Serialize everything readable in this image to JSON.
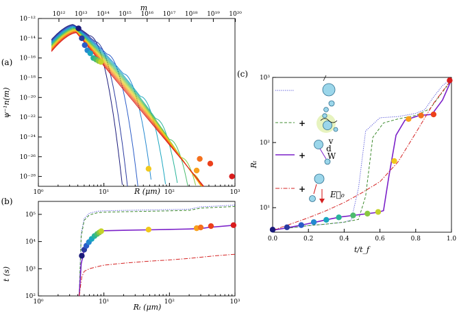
{
  "chart_data": [
    {
      "panel": "(a)",
      "type": "line",
      "title": "",
      "xlabel": "R (μm)",
      "ylabel": "ψ⁻¹n(m)",
      "top_xlabel": "m",
      "xscale": "log",
      "yscale": "log",
      "xlim": [
        1,
        1000
      ],
      "ylim": [
        1e-29,
        1e-12
      ],
      "x_ticks": [
        "10⁰",
        "10¹",
        "10²",
        "10³"
      ],
      "y_ticks": [
        "10⁻¹²",
        "10⁻¹⁴",
        "10⁻¹⁶",
        "10⁻¹⁸",
        "10⁻²⁰",
        "10⁻²²",
        "10⁻²⁴",
        "10⁻²⁶",
        "10⁻²⁸"
      ],
      "top_ticks": [
        "10¹²",
        "10¹³",
        "10¹⁴",
        "10¹⁵",
        "10¹⁶",
        "10¹⁷",
        "10¹⁸",
        "10¹⁹",
        "10²⁰"
      ],
      "series_colors": [
        "#1a1a7a",
        "#2a3aa0",
        "#2a5cc8",
        "#2388d0",
        "#1aa6c0",
        "#28b49a",
        "#4cbc6c",
        "#88c840",
        "#c4d22a",
        "#f0c81c",
        "#f8a01c",
        "#f4701c",
        "#ec401c",
        "#d81c1c"
      ],
      "markers": [
        {
          "x": 4.1,
          "y": 1e-13
        },
        {
          "x": 4.6,
          "y": 1e-14
        },
        {
          "x": 5.1,
          "y": 2e-15
        },
        {
          "x": 5.6,
          "y": 6e-16
        },
        {
          "x": 6.2,
          "y": 3e-16
        },
        {
          "x": 6.9,
          "y": 1e-16
        },
        {
          "x": 7.6,
          "y": 7e-17
        },
        {
          "x": 8.3,
          "y": 5e-17
        },
        {
          "x": 9.0,
          "y": 4e-17
        },
        {
          "x": 48,
          "y": 6e-28
        },
        {
          "x": 260,
          "y": 4e-28
        },
        {
          "x": 290,
          "y": 6e-27
        },
        {
          "x": 420,
          "y": 2e-27
        },
        {
          "x": 900,
          "y": 1e-28
        }
      ]
    },
    {
      "panel": "(b)",
      "type": "line",
      "title": "",
      "xlabel": "Rₜ (μm)",
      "ylabel": "t (s)",
      "xscale": "log",
      "yscale": "log",
      "xlim": [
        1,
        1000
      ],
      "ylim": [
        100,
        300000
      ],
      "x_ticks": [
        "10⁰",
        "10¹",
        "10²",
        "10³"
      ],
      "y_ticks": [
        "10²",
        "10³",
        "10⁴",
        "10⁵"
      ],
      "series": [
        {
          "style": "dotted",
          "color": "#5050d8",
          "x": [
            4.2,
            4.5,
            5,
            6,
            8,
            10,
            20,
            50,
            100,
            200,
            300,
            500,
            1000
          ],
          "y": [
            100,
            20000,
            70000,
            110000,
            130000,
            135000,
            140000,
            145000,
            150000,
            155000,
            190000,
            200000,
            220000
          ]
        },
        {
          "style": "dashed",
          "color": "#3c8a2c",
          "x": [
            4.2,
            4.5,
            5,
            6,
            8,
            10,
            20,
            50,
            100,
            200,
            300,
            500,
            1000
          ],
          "y": [
            100,
            15000,
            60000,
            95000,
            115000,
            120000,
            125000,
            130000,
            135000,
            140000,
            170000,
            180000,
            195000
          ]
        },
        {
          "style": "solid",
          "color": "#7a1fc8",
          "x": [
            4.2,
            4.5,
            5,
            6,
            7,
            8,
            9,
            10,
            20,
            50,
            100,
            200,
            300,
            400,
            1000
          ],
          "y": [
            100,
            1500,
            5000,
            11000,
            16000,
            20000,
            23000,
            25000,
            26000,
            27000,
            28000,
            29000,
            30000,
            33000,
            40000
          ]
        },
        {
          "style": "dashdot",
          "color": "#d42020",
          "x": [
            4.2,
            4.6,
            5,
            6,
            8,
            10,
            20,
            50,
            100,
            200,
            500,
            1000
          ],
          "y": [
            100,
            500,
            800,
            1000,
            1200,
            1350,
            1600,
            1900,
            2100,
            2400,
            3000,
            3400
          ]
        }
      ],
      "markers": [
        {
          "x": 4.6,
          "y": 3000
        },
        {
          "x": 5.0,
          "y": 5000
        },
        {
          "x": 5.4,
          "y": 7000
        },
        {
          "x": 5.9,
          "y": 9500
        },
        {
          "x": 6.5,
          "y": 12500
        },
        {
          "x": 7.2,
          "y": 16000
        },
        {
          "x": 7.9,
          "y": 19000
        },
        {
          "x": 8.5,
          "y": 21500
        },
        {
          "x": 9.1,
          "y": 24000
        },
        {
          "x": 48,
          "y": 27500
        },
        {
          "x": 260,
          "y": 31000
        },
        {
          "x": 300,
          "y": 33000
        },
        {
          "x": 430,
          "y": 37000
        },
        {
          "x": 950,
          "y": 40000
        }
      ]
    },
    {
      "panel": "(c)",
      "type": "line",
      "title": "",
      "xlabel": "t/t_f",
      "ylabel": "Rₜ",
      "xscale": "linear",
      "yscale": "log",
      "xlim": [
        0,
        1
      ],
      "ylim": [
        4.2,
        1000
      ],
      "x_ticks": [
        "0.0",
        "0.2",
        "0.4",
        "0.6",
        "0.8",
        "1.0"
      ],
      "y_ticks": [
        "10¹",
        "10²",
        "10³"
      ],
      "series": [
        {
          "style": "dotted",
          "color": "#5050d8",
          "x": [
            0,
            0.1,
            0.2,
            0.3,
            0.4,
            0.44,
            0.48,
            0.52,
            0.6,
            0.7,
            0.8,
            0.85,
            0.9,
            0.95,
            1.0
          ],
          "y": [
            4.6,
            4.9,
            5.3,
            5.6,
            6,
            6.5,
            20,
            150,
            240,
            250,
            280,
            320,
            500,
            750,
            950
          ]
        },
        {
          "style": "dashed",
          "color": "#3c8a2c",
          "x": [
            0,
            0.1,
            0.2,
            0.3,
            0.4,
            0.48,
            0.52,
            0.56,
            0.62,
            0.7,
            0.8,
            0.88,
            0.95,
            1.0
          ],
          "y": [
            4.6,
            4.9,
            5.3,
            5.6,
            6,
            6.6,
            15,
            120,
            200,
            230,
            260,
            330,
            600,
            900
          ]
        },
        {
          "style": "solid",
          "color": "#7a1fc8",
          "x": [
            0,
            0.08,
            0.16,
            0.24,
            0.31,
            0.38,
            0.45,
            0.53,
            0.59,
            0.62,
            0.65,
            0.69,
            0.74,
            0.82,
            0.89,
            0.95,
            1.0
          ],
          "y": [
            4.5,
            4.9,
            5.4,
            6,
            6.6,
            7.2,
            7.6,
            8.1,
            8.5,
            9,
            30,
            130,
            220,
            260,
            270,
            450,
            920
          ]
        },
        {
          "style": "dashdot",
          "color": "#d42020",
          "x": [
            0,
            0.1,
            0.2,
            0.3,
            0.4,
            0.5,
            0.6,
            0.7,
            0.8,
            0.9,
            1.0
          ],
          "y": [
            4.5,
            5.6,
            7,
            9,
            12,
            17,
            25,
            50,
            140,
            400,
            930
          ]
        }
      ],
      "markers": [
        {
          "x": 0.0,
          "y": 4.6
        },
        {
          "x": 0.08,
          "y": 5.0
        },
        {
          "x": 0.16,
          "y": 5.4
        },
        {
          "x": 0.23,
          "y": 6.0
        },
        {
          "x": 0.3,
          "y": 6.5
        },
        {
          "x": 0.37,
          "y": 7.1
        },
        {
          "x": 0.45,
          "y": 7.6
        },
        {
          "x": 0.53,
          "y": 8.1
        },
        {
          "x": 0.59,
          "y": 8.6
        },
        {
          "x": 0.68,
          "y": 52
        },
        {
          "x": 0.76,
          "y": 230
        },
        {
          "x": 0.83,
          "y": 260
        },
        {
          "x": 0.9,
          "y": 270
        },
        {
          "x": 0.99,
          "y": 900
        }
      ],
      "legend_labels": [
        "+",
        "+",
        "+"
      ],
      "annotation_letters": [
        "v",
        "d",
        "W"
      ],
      "field_label": "E⃗₀"
    }
  ],
  "marker_colors": [
    "#1a1a7a",
    "#2a3aa0",
    "#2a5cc8",
    "#2388d0",
    "#1aa6c0",
    "#28b49a",
    "#4cbc6c",
    "#88c840",
    "#c4d22a",
    "#f0c81c",
    "#f8a01c",
    "#f4701c",
    "#ec401c",
    "#d81c1c"
  ]
}
